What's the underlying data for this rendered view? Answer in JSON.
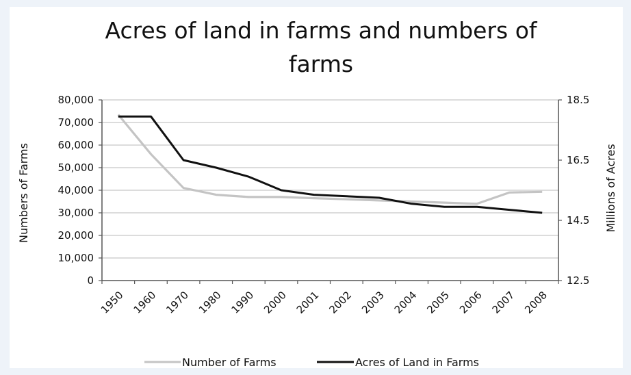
{
  "chart_data": {
    "type": "line",
    "title_lines": [
      "Acres of land in farms and numbers of",
      "farms"
    ],
    "categories": [
      "1950",
      "1960",
      "1970",
      "1980",
      "1990",
      "2000",
      "2001",
      "2002",
      "2003",
      "2004",
      "2005",
      "2006",
      "2007",
      "2008"
    ],
    "y_left": {
      "label": "Numbers of Farms",
      "range": [
        0,
        80000
      ],
      "ticks": [
        "0",
        "10,000",
        "20,000",
        "30,000",
        "40,000",
        "50,000",
        "60,000",
        "70,000",
        "80,000"
      ]
    },
    "y_right": {
      "label": "Millions of Acres",
      "range": [
        12.5,
        18.5
      ],
      "ticks": [
        "12.5",
        "14.5",
        "16.5",
        "18.5"
      ]
    },
    "grid": true,
    "legend_position": "bottom",
    "series": [
      {
        "name": "Number of Farms",
        "axis": "left",
        "color": "#c4c4c4",
        "values": [
          73500,
          56000,
          41000,
          38000,
          37000,
          37000,
          36500,
          36000,
          35500,
          35000,
          34500,
          34000,
          39000,
          39300
        ]
      },
      {
        "name": "Acres of Land in Farms",
        "axis": "right",
        "color": "#111111",
        "values": [
          17.95,
          17.95,
          16.5,
          16.25,
          15.95,
          15.5,
          15.35,
          15.3,
          15.25,
          15.05,
          14.95,
          14.95,
          14.85,
          14.75
        ]
      }
    ]
  }
}
